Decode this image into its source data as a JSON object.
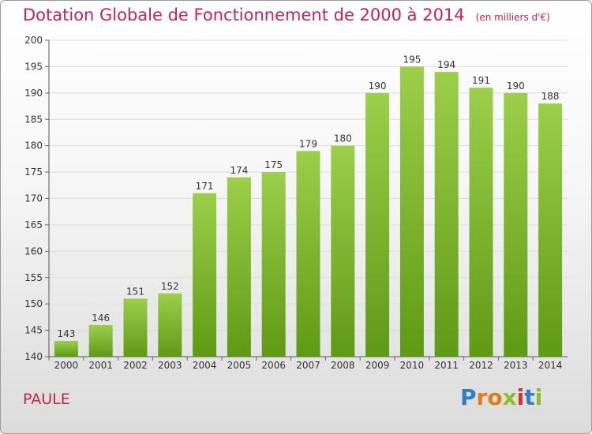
{
  "header": {
    "title": "Dotation Globale de Fonctionnement de 2000 à 2014",
    "unit": "(en milliers d'€)"
  },
  "footer": {
    "commune": "PAULE",
    "logo": "Proxiti",
    "logo_colors": [
      "#2e7fc4",
      "#e07b1a",
      "#e07b1a",
      "#8cbf26",
      "#d92f2f",
      "#2e7fc4",
      "#8cbf26"
    ]
  },
  "colors": {
    "title": "#c8224a",
    "bar_top": "#9ccf4a",
    "bar_bottom": "#5f9a14"
  },
  "chart_data": {
    "type": "bar",
    "title": "Dotation Globale de Fonctionnement de 2000 à 2014",
    "xlabel": "",
    "ylabel": "",
    "categories": [
      "2000",
      "2001",
      "2002",
      "2003",
      "2004",
      "2005",
      "2006",
      "2007",
      "2008",
      "2009",
      "2010",
      "2011",
      "2012",
      "2013",
      "2014"
    ],
    "values": [
      143,
      146,
      151,
      152,
      171,
      174,
      175,
      179,
      180,
      190,
      195,
      194,
      191,
      190,
      188
    ],
    "ylim": [
      140,
      200
    ],
    "yticks": [
      140,
      145,
      150,
      155,
      160,
      165,
      170,
      175,
      180,
      185,
      190,
      195,
      200
    ],
    "grid": true
  }
}
